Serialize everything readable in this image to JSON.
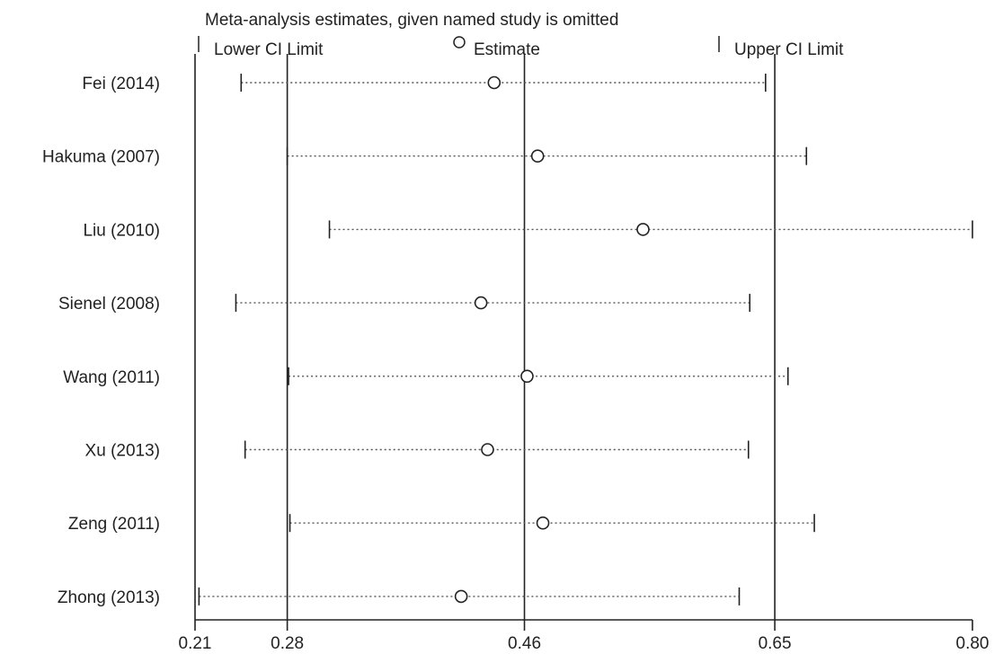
{
  "chart_data": {
    "type": "forest",
    "title": "Meta-analysis estimates, given named study is omitted",
    "legend": {
      "lower_label": "Lower CI Limit",
      "estimate_label": "Estimate",
      "upper_label": "Upper CI Limit",
      "placement": "top"
    },
    "xaxis": {
      "ticks": [
        0.21,
        0.28,
        0.46,
        0.65,
        0.8
      ],
      "tick_labels": [
        "0.21",
        "0.28",
        "0.46",
        "0.65",
        "0.80"
      ],
      "range": [
        0.21,
        0.8
      ]
    },
    "reference_lines": [
      0.28,
      0.46,
      0.65
    ],
    "studies": [
      {
        "label": "Fei (2014)",
        "lower": 0.245,
        "estimate": 0.437,
        "upper": 0.643
      },
      {
        "label": "Hakuma (2007)",
        "lower": 0.28,
        "estimate": 0.47,
        "upper": 0.674
      },
      {
        "label": "Liu (2010)",
        "lower": 0.312,
        "estimate": 0.55,
        "upper": 0.8
      },
      {
        "label": "Sienel (2008)",
        "lower": 0.241,
        "estimate": 0.427,
        "upper": 0.631
      },
      {
        "label": "Wang (2011)",
        "lower": 0.281,
        "estimate": 0.462,
        "upper": 0.66
      },
      {
        "label": "Xu (2013)",
        "lower": 0.248,
        "estimate": 0.432,
        "upper": 0.63
      },
      {
        "label": "Zeng (2011)",
        "lower": 0.282,
        "estimate": 0.474,
        "upper": 0.68
      },
      {
        "label": "Zhong (2013)",
        "lower": 0.213,
        "estimate": 0.412,
        "upper": 0.623
      }
    ]
  }
}
